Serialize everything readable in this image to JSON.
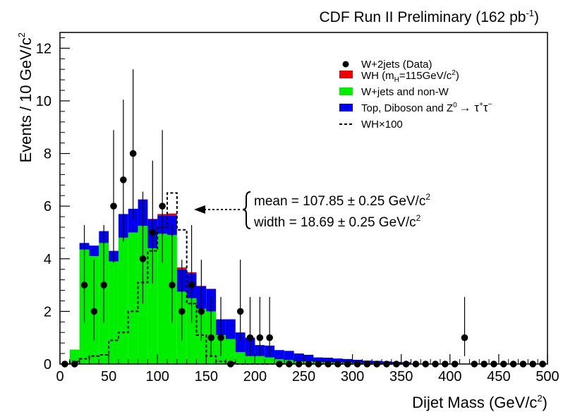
{
  "header": {
    "title_main": "CDF Run II Preliminary (162 pb",
    "title_exp": "-1",
    "title_close": ")"
  },
  "axes": {
    "xlabel": "Dijet Mass (GeV/c",
    "xlabel_exp": "2",
    "xlabel_close": ")",
    "ylabel": "Events / 10 GeV/c",
    "ylabel_exp": "2",
    "xlim": [
      0,
      500
    ],
    "ylim": [
      0,
      12.6
    ],
    "xticks": [
      0,
      50,
      100,
      150,
      200,
      250,
      300,
      350,
      400,
      450,
      500
    ],
    "yticks": [
      0,
      2,
      4,
      6,
      8,
      10,
      12
    ]
  },
  "legend": {
    "data": "W+2jets (Data)",
    "wh_pre": "WH (m",
    "wh_sub": "H",
    "wh_post": "=115GeV/c",
    "wh_exp": "2",
    "wh_close": ")",
    "wjets": "W+jets and non-W",
    "top_pre": "Top, Diboson and Z",
    "top_exp": "0",
    "top_arrow": "→ τ",
    "top_exp2": "+",
    "top_tau": "τ",
    "top_exp3": "−",
    "whx": "WH×100"
  },
  "annotation": {
    "mean": "mean = 107.85 ± 0.25 GeV/c",
    "mean_exp": "2",
    "width": "width = 18.69 ± 0.25 GeV/c",
    "width_exp": "2"
  },
  "colors": {
    "wjets": "#00ee00",
    "top": "#0000ee",
    "wh": "#ee0000",
    "data": "#000000"
  },
  "chart_data": {
    "type": "bar",
    "bin_width": 10,
    "bin_low_edges": [
      10,
      20,
      30,
      40,
      50,
      60,
      70,
      80,
      90,
      100,
      110,
      120,
      130,
      140,
      150,
      160,
      170,
      180,
      190,
      200,
      210,
      220,
      230,
      240,
      250,
      260,
      270,
      280,
      290,
      300,
      310,
      320,
      330,
      340,
      350
    ],
    "series": [
      {
        "name": "W+jets and non-W",
        "values": [
          0.55,
          4.35,
          4.1,
          4.6,
          3.9,
          4.8,
          5.0,
          5.25,
          4.4,
          4.95,
          4.9,
          2.75,
          2.5,
          2.1,
          2.0,
          1.1,
          0.95,
          0.45,
          0.3,
          0.3,
          0.25,
          0.18,
          0.15,
          0.1,
          0.1,
          0.08,
          0.07,
          0.06,
          0.05,
          0.04,
          0.03,
          0.03,
          0.03,
          0.02,
          0.02
        ]
      },
      {
        "name": "Top, Diboson and Z0 → τ+τ−",
        "values": [
          0.0,
          0.25,
          0.4,
          0.45,
          0.4,
          0.9,
          0.9,
          1.0,
          1.1,
          0.7,
          0.75,
          0.85,
          0.95,
          0.85,
          0.85,
          0.6,
          0.75,
          0.75,
          0.7,
          0.42,
          0.45,
          0.35,
          0.35,
          0.3,
          0.25,
          0.17,
          0.17,
          0.15,
          0.14,
          0.12,
          0.1,
          0.09,
          0.07,
          0.06,
          0.05
        ]
      },
      {
        "name": "WH (mH=115GeV/c2)",
        "values": [
          0.0,
          0.0,
          0.0,
          0.0,
          0.0,
          0.0,
          0.0,
          0.01,
          0.02,
          0.05,
          0.07,
          0.07,
          0.04,
          0.02,
          0.01,
          0.0,
          0.0,
          0.0,
          0.0,
          0.0,
          0.0,
          0.0,
          0.0,
          0.0,
          0.0,
          0.0,
          0.0,
          0.0,
          0.0,
          0.0,
          0.0,
          0.0,
          0.0,
          0.0,
          0.0
        ]
      },
      {
        "name": "WH×100",
        "values": [
          0.1,
          0.2,
          0.3,
          0.35,
          0.9,
          1.2,
          2.0,
          3.1,
          4.3,
          5.2,
          6.5,
          5.1,
          2.3,
          1.1,
          0.3,
          0.1,
          0.05,
          0,
          0,
          0,
          0,
          0,
          0,
          0,
          0,
          0,
          0,
          0,
          0,
          0,
          0,
          0,
          0,
          0,
          0
        ]
      }
    ],
    "data_points": {
      "name": "W+2jets (Data)",
      "x": [
        5,
        15,
        25,
        35,
        45,
        55,
        65,
        75,
        85,
        95,
        105,
        115,
        125,
        135,
        145,
        155,
        165,
        175,
        185,
        195,
        205,
        215,
        225,
        235,
        245,
        255,
        265,
        275,
        285,
        295,
        305,
        315,
        325,
        335,
        345,
        355,
        365,
        375,
        385,
        395,
        405,
        415,
        425,
        435,
        445,
        455,
        465,
        475,
        485,
        495
      ],
      "y": [
        0,
        0,
        3,
        2,
        3,
        6,
        7,
        8,
        4,
        5,
        6,
        3,
        2,
        3,
        2,
        1,
        1,
        0,
        2,
        1,
        1,
        1,
        0,
        0,
        0,
        0,
        0,
        0,
        0,
        0,
        0,
        0,
        0,
        0,
        0,
        0,
        0,
        0,
        0,
        0,
        0,
        1,
        0,
        0,
        0,
        0,
        0,
        0,
        0,
        0
      ]
    }
  }
}
